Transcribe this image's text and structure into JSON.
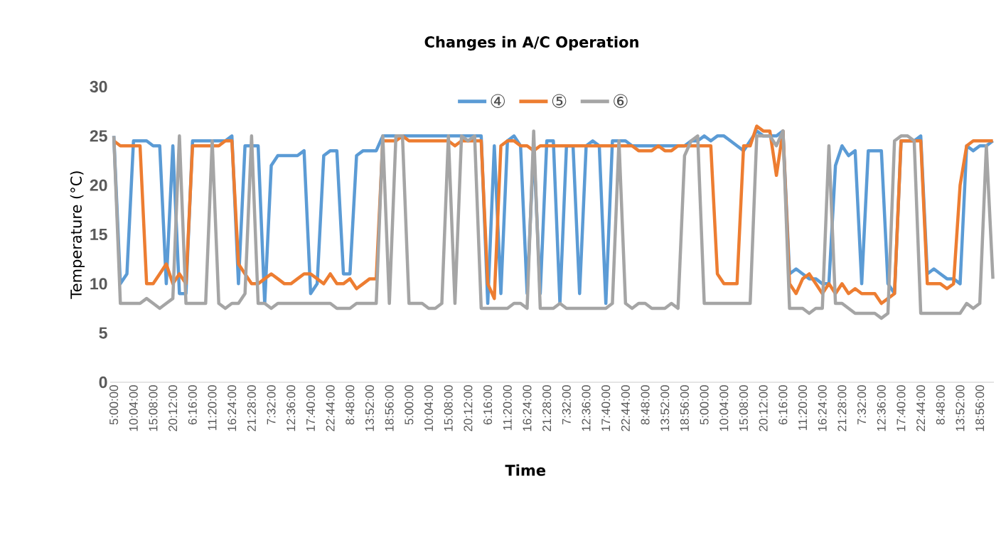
{
  "chart_data": {
    "type": "line",
    "title": "Changes in A/C Operation",
    "xlabel": "Time",
    "ylabel": "Temperature (°C)",
    "categories": [
      "5:00:00",
      null,
      null,
      "10:04:00",
      null,
      null,
      "15:08:00",
      null,
      null,
      "20:12:00",
      null,
      null,
      "6:16:00",
      null,
      null,
      "11:20:00",
      null,
      null,
      "16:24:00",
      null,
      null,
      "21:28:00",
      null,
      null,
      "7:32:00",
      null,
      null,
      "12:36:00",
      null,
      null,
      "17:40:00",
      null,
      null,
      "22:44:00",
      null,
      null,
      "8:48:00",
      null,
      null,
      "13:52:00",
      null,
      null,
      "18:56:00",
      null,
      null,
      "5:00:00",
      null,
      null,
      "10:04:00",
      null,
      null,
      "15:08:00",
      null,
      null,
      "20:12:00",
      null,
      null,
      "6:16:00",
      null,
      null,
      "11:20:00",
      null,
      null,
      "16:24:00",
      null,
      null,
      "21:28:00",
      null,
      null,
      "7:32:00",
      null,
      null,
      "12:36:00",
      null,
      null,
      "17:40:00",
      null,
      null,
      "22:44:00",
      null,
      null,
      "8:48:00",
      null,
      null,
      "13:52:00",
      null,
      null,
      "18:56:00",
      null,
      null,
      "5:00:00",
      null,
      null,
      "10:04:00",
      null,
      null,
      "15:08:00",
      null,
      null,
      "20:12:00",
      null,
      null,
      "6:16:00",
      null,
      null,
      "11:20:00",
      null,
      null,
      "16:24:00",
      null,
      null,
      "21:28:00",
      null,
      null,
      "7:32:00",
      null,
      null,
      "12:36:00",
      null,
      null,
      "17:40:00",
      null,
      null,
      "22:44:00",
      null,
      null,
      "8:48:00",
      null,
      null,
      "13:52:00",
      null,
      null,
      "18:56:00",
      null,
      null
    ],
    "series": [
      {
        "name": "④",
        "color": "#5b9bd5",
        "values": [
          25,
          10,
          11,
          24.5,
          24.5,
          24.5,
          24,
          24,
          10,
          24,
          9,
          9,
          24.5,
          24.5,
          24.5,
          24.5,
          24.5,
          24.5,
          25,
          10,
          24,
          24,
          24,
          8,
          22,
          23,
          23,
          23,
          23,
          23.5,
          9,
          10,
          23,
          23.5,
          23.5,
          11,
          11,
          23,
          23.5,
          23.5,
          23.5,
          25,
          25,
          25,
          25,
          25,
          25,
          25,
          25,
          25,
          25,
          25,
          25,
          25,
          25,
          25,
          25,
          8,
          24,
          9,
          24.5,
          25,
          24,
          9,
          24,
          9,
          24.5,
          24.5,
          8,
          24,
          24,
          9,
          24,
          24.5,
          24,
          8,
          24.5,
          24.5,
          24.5,
          24,
          24,
          24,
          24,
          24,
          24,
          24,
          24,
          24,
          24.5,
          24.5,
          25,
          24.5,
          25,
          25,
          24.5,
          24,
          23.5,
          24.5,
          25.5,
          25,
          25,
          25,
          25.5,
          11,
          11.5,
          11,
          10.5,
          10.5,
          10,
          10,
          22,
          24,
          23,
          23.5,
          10,
          23.5,
          23.5,
          23.5,
          10,
          9,
          24.5,
          24.5,
          24.5,
          25,
          11,
          11.5,
          11,
          10.5,
          10.5,
          10,
          24,
          23.5,
          24,
          24,
          24.5
        ]
      },
      {
        "name": "⑤",
        "color": "#ed7d31",
        "values": [
          24.5,
          24,
          24,
          24,
          24,
          10,
          10,
          11,
          12,
          10,
          11,
          10,
          24,
          24,
          24,
          24,
          24,
          24.5,
          24.5,
          12,
          11,
          10,
          10,
          10.5,
          11,
          10.5,
          10,
          10,
          10.5,
          11,
          11,
          10.5,
          10,
          11,
          10,
          10,
          10.5,
          9.5,
          10,
          10.5,
          10.5,
          24.5,
          24.5,
          24.5,
          25,
          24.5,
          24.5,
          24.5,
          24.5,
          24.5,
          24.5,
          24.5,
          24,
          24.5,
          24.5,
          24.5,
          24.5,
          10,
          8.5,
          24,
          24.5,
          24.5,
          24,
          24,
          23.5,
          24,
          24,
          24,
          24,
          24,
          24,
          24,
          24,
          24,
          24,
          24,
          24,
          24,
          24,
          24,
          23.5,
          23.5,
          23.5,
          24,
          23.5,
          23.5,
          24,
          24,
          24,
          24,
          24,
          24,
          11,
          10,
          10,
          10,
          24,
          24,
          26,
          25.5,
          25.5,
          21,
          25.5,
          10,
          9,
          10.5,
          11,
          10,
          9,
          10,
          9,
          10,
          9,
          9.5,
          9,
          9,
          9,
          8,
          8.5,
          9,
          24.5,
          24.5,
          24.5,
          24.5,
          10,
          10,
          10,
          9.5,
          10,
          20,
          24,
          24.5,
          24.5,
          24.5,
          24.5
        ]
      },
      {
        "name": "⑥",
        "color": "#a5a5a5",
        "values": [
          25,
          8,
          8,
          8,
          8,
          8.5,
          8,
          7.5,
          8,
          8.5,
          25,
          8,
          8,
          8,
          8,
          24.5,
          8,
          7.5,
          8,
          8,
          9,
          25,
          8,
          8,
          7.5,
          8,
          8,
          8,
          8,
          8,
          8,
          8,
          8,
          8,
          7.5,
          7.5,
          7.5,
          8,
          8,
          8,
          8,
          25,
          8,
          25,
          25,
          8,
          8,
          8,
          7.5,
          7.5,
          8,
          25,
          8,
          25,
          24.5,
          25,
          7.5,
          7.5,
          7.5,
          7.5,
          7.5,
          8,
          8,
          7.5,
          25.5,
          7.5,
          7.5,
          7.5,
          8,
          7.5,
          7.5,
          7.5,
          7.5,
          7.5,
          7.5,
          7.5,
          8,
          24.5,
          8,
          7.5,
          8,
          8,
          7.5,
          7.5,
          7.5,
          8,
          7.5,
          23,
          24.5,
          25,
          8,
          8,
          8,
          8,
          8,
          8,
          8,
          8,
          25,
          25,
          25,
          24,
          25.5,
          7.5,
          7.5,
          7.5,
          7,
          7.5,
          7.5,
          24,
          8,
          8,
          7.5,
          7,
          7,
          7,
          7,
          6.5,
          7,
          24.5,
          25,
          25,
          24.5,
          7,
          7,
          7,
          7,
          7,
          7,
          7,
          8,
          7.5,
          8,
          24,
          10.5
        ]
      }
    ],
    "ylim": [
      0,
      30
    ],
    "yticks": [
      0,
      5,
      10,
      15,
      20,
      25,
      30
    ],
    "legend": "top"
  }
}
